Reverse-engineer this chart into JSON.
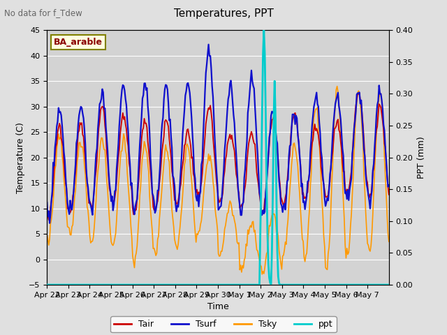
{
  "title": "Temperatures, PPT",
  "subtitle": "No data for f_Tdew",
  "location_label": "BA_arable",
  "xlabel": "Time",
  "ylabel_left": "Temperature (C)",
  "ylabel_right": "PPT (mm)",
  "ylim_left": [
    -5,
    45
  ],
  "ylim_right": [
    0.0,
    0.4
  ],
  "yticks_left": [
    -5,
    0,
    5,
    10,
    15,
    20,
    25,
    30,
    35,
    40,
    45
  ],
  "yticks_right_vals": [
    0.0,
    0.05,
    0.1,
    0.15,
    0.2,
    0.25,
    0.3,
    0.35,
    0.4
  ],
  "xtick_labels": [
    "Apr 22",
    "Apr 23",
    "Apr 24",
    "Apr 25",
    "Apr 26",
    "Apr 27",
    "Apr 28",
    "Apr 29",
    "Apr 30",
    "May 1",
    "May 2",
    "May 3",
    "May 4",
    "May 5",
    "May 6",
    "May 7"
  ],
  "n_days": 16,
  "color_tair": "#cc0000",
  "color_tsurf": "#1010cc",
  "color_tsky": "#ff9900",
  "color_ppt": "#00cccc",
  "color_bg": "#e0e0e0",
  "color_plot_bg": "#d3d3d3",
  "color_grid": "#ffffff",
  "lw_tair": 1.3,
  "lw_tsurf": 1.6,
  "lw_tsky": 1.2,
  "lw_ppt": 2.0
}
